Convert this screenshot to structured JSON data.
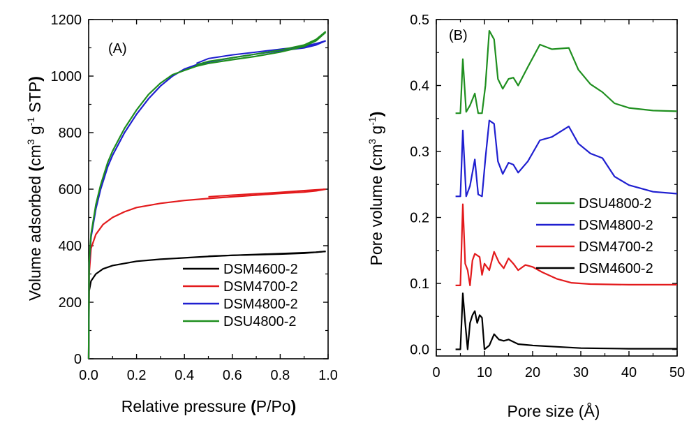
{
  "chart_data": [
    {
      "type": "line",
      "panel_label": "(A)",
      "xlabel_parts": [
        "Relative pressure ",
        "(",
        "P/Po",
        ")"
      ],
      "ylabel_parts": [
        "Volume adsorbed ",
        "(",
        "cm",
        "3",
        " g",
        "-1",
        " STP",
        ")"
      ],
      "xlim": [
        0.0,
        1.0
      ],
      "ylim": [
        0,
        1200
      ],
      "xticks": [
        0.0,
        0.2,
        0.4,
        0.6,
        0.8,
        1.0
      ],
      "xtick_labels": [
        "0.0",
        "0.2",
        "0.4",
        "0.6",
        "0.8",
        "1.0"
      ],
      "yticks": [
        0,
        200,
        400,
        600,
        800,
        1000,
        1200
      ],
      "ytick_labels": [
        "0",
        "200",
        "400",
        "600",
        "800",
        "1000",
        "1200"
      ],
      "legend_position": "bottom-right",
      "legend_order": [
        "DSM4600-2",
        "DSM4700-2",
        "DSM4800-2",
        "DSU4800-2"
      ],
      "series": [
        {
          "name": "DSM4600-2",
          "color": "#000000",
          "x": [
            0.0,
            0.002,
            0.01,
            0.03,
            0.06,
            0.1,
            0.2,
            0.3,
            0.4,
            0.5,
            0.6,
            0.7,
            0.8,
            0.9,
            0.95,
            0.99
          ],
          "y": [
            0,
            240,
            275,
            300,
            318,
            330,
            345,
            352,
            357,
            362,
            366,
            369,
            372,
            375,
            377,
            380
          ],
          "hysteresis": [
            [
              0.99,
              380
            ],
            [
              0.9,
              373
            ],
            [
              0.8,
              370
            ],
            [
              0.7,
              368
            ],
            [
              0.6,
              366
            ],
            [
              0.5,
              363
            ]
          ]
        },
        {
          "name": "DSM4700-2",
          "color": "#e31a1c",
          "x": [
            0.0,
            0.002,
            0.01,
            0.03,
            0.06,
            0.1,
            0.15,
            0.2,
            0.3,
            0.4,
            0.5,
            0.6,
            0.7,
            0.8,
            0.9,
            0.95,
            0.99
          ],
          "y": [
            0,
            300,
            390,
            440,
            475,
            500,
            520,
            535,
            550,
            560,
            567,
            573,
            579,
            585,
            590,
            594,
            600
          ],
          "hysteresis": [
            [
              0.99,
              600
            ],
            [
              0.9,
              595
            ],
            [
              0.8,
              589
            ],
            [
              0.7,
              584
            ],
            [
              0.6,
              579
            ],
            [
              0.5,
              573
            ]
          ]
        },
        {
          "name": "DSM4800-2",
          "color": "#1f1fd0",
          "x": [
            0.0,
            0.002,
            0.01,
            0.03,
            0.05,
            0.08,
            0.1,
            0.15,
            0.2,
            0.25,
            0.3,
            0.35,
            0.4,
            0.45,
            0.5,
            0.6,
            0.7,
            0.8,
            0.9,
            0.95,
            0.99
          ],
          "y": [
            0,
            330,
            430,
            530,
            600,
            680,
            720,
            800,
            865,
            920,
            965,
            1000,
            1025,
            1040,
            1050,
            1065,
            1078,
            1090,
            1100,
            1110,
            1125
          ],
          "hysteresis": [
            [
              0.99,
              1125
            ],
            [
              0.95,
              1115
            ],
            [
              0.9,
              1105
            ],
            [
              0.8,
              1095
            ],
            [
              0.7,
              1085
            ],
            [
              0.6,
              1075
            ],
            [
              0.5,
              1062
            ],
            [
              0.45,
              1045
            ]
          ]
        },
        {
          "name": "DSU4800-2",
          "color": "#1f8f1f",
          "x": [
            0.0,
            0.002,
            0.01,
            0.03,
            0.05,
            0.08,
            0.1,
            0.15,
            0.2,
            0.25,
            0.3,
            0.35,
            0.4,
            0.45,
            0.5,
            0.6,
            0.7,
            0.8,
            0.9,
            0.95,
            0.99
          ],
          "y": [
            0,
            340,
            440,
            545,
            615,
            695,
            735,
            815,
            880,
            935,
            975,
            1005,
            1020,
            1035,
            1045,
            1058,
            1070,
            1085,
            1105,
            1125,
            1155
          ],
          "hysteresis": [
            [
              0.99,
              1158
            ],
            [
              0.95,
              1130
            ],
            [
              0.9,
              1110
            ],
            [
              0.8,
              1092
            ],
            [
              0.7,
              1078
            ],
            [
              0.6,
              1065
            ],
            [
              0.5,
              1052
            ],
            [
              0.45,
              1040
            ]
          ]
        }
      ]
    },
    {
      "type": "line",
      "panel_label": "(B)",
      "xlabel_parts": [
        "Pore size (Å)"
      ],
      "ylabel_parts": [
        "Pore volume ",
        "(",
        "cm",
        "3",
        " g",
        "-1",
        ")"
      ],
      "xlim": [
        0,
        50
      ],
      "ylim": [
        -0.01,
        0.5
      ],
      "xticks": [
        0,
        10,
        20,
        30,
        40,
        50
      ],
      "xtick_labels": [
        "0",
        "10",
        "20",
        "30",
        "40",
        "50"
      ],
      "yticks": [
        0.0,
        0.1,
        0.2,
        0.3,
        0.4,
        0.5
      ],
      "ytick_labels": [
        "0.0",
        "0.1",
        "0.2",
        "0.3",
        "0.4",
        "0.5"
      ],
      "legend_position": "right-middle",
      "legend_order": [
        "DSU4800-2",
        "DSM4800-2",
        "DSM4700-2",
        "DSM4600-2"
      ],
      "series": [
        {
          "name": "DSU4800-2",
          "color": "#1f8f1f",
          "x": [
            4.0,
            5.0,
            5.5,
            6.2,
            7.0,
            8.0,
            8.7,
            9.5,
            10.2,
            11.0,
            12.0,
            12.8,
            13.8,
            15.0,
            16.0,
            17.0,
            19.0,
            21.5,
            24.0,
            27.5,
            29.5,
            32.0,
            34.5,
            37.0,
            40.0,
            45.0,
            50.0
          ],
          "y": [
            0.358,
            0.358,
            0.44,
            0.36,
            0.37,
            0.388,
            0.358,
            0.358,
            0.4,
            0.483,
            0.47,
            0.41,
            0.395,
            0.41,
            0.412,
            0.4,
            0.428,
            0.462,
            0.455,
            0.457,
            0.424,
            0.402,
            0.39,
            0.373,
            0.366,
            0.362,
            0.361
          ]
        },
        {
          "name": "DSM4800-2",
          "color": "#1f1fd0",
          "x": [
            4.0,
            5.0,
            5.5,
            6.2,
            7.0,
            8.0,
            8.7,
            9.5,
            10.2,
            11.0,
            12.0,
            12.8,
            13.8,
            15.0,
            16.0,
            17.0,
            19.0,
            21.5,
            24.0,
            27.5,
            29.5,
            32.0,
            34.5,
            37.0,
            40.0,
            45.0,
            50.0
          ],
          "y": [
            0.232,
            0.232,
            0.332,
            0.232,
            0.248,
            0.288,
            0.235,
            0.232,
            0.29,
            0.347,
            0.342,
            0.285,
            0.266,
            0.283,
            0.28,
            0.268,
            0.285,
            0.317,
            0.322,
            0.338,
            0.312,
            0.297,
            0.29,
            0.262,
            0.249,
            0.239,
            0.236
          ]
        },
        {
          "name": "DSM4700-2",
          "color": "#e31a1c",
          "x": [
            4.0,
            5.0,
            5.5,
            6.0,
            6.5,
            7.0,
            7.5,
            8.0,
            9.0,
            9.5,
            10.0,
            11.0,
            12.0,
            13.0,
            14.0,
            15.0,
            16.0,
            17.0,
            18.5,
            20.0,
            22.0,
            25.0,
            28.0,
            32.0,
            40.0,
            50.0
          ],
          "y": [
            0.097,
            0.097,
            0.22,
            0.13,
            0.12,
            0.097,
            0.135,
            0.145,
            0.14,
            0.113,
            0.13,
            0.12,
            0.148,
            0.132,
            0.123,
            0.138,
            0.13,
            0.12,
            0.128,
            0.125,
            0.117,
            0.107,
            0.101,
            0.099,
            0.098,
            0.098
          ]
        },
        {
          "name": "DSM4600-2",
          "color": "#000000",
          "x": [
            4.0,
            5.0,
            5.5,
            6.0,
            6.5,
            7.0,
            7.5,
            8.0,
            8.5,
            9.0,
            9.5,
            10.0,
            11.0,
            12.0,
            13.0,
            14.0,
            15.0,
            17.0,
            20.0,
            25.0,
            30.0,
            40.0,
            50.0
          ],
          "y": [
            0.0,
            0.0,
            0.085,
            0.04,
            0.0,
            0.04,
            0.052,
            0.058,
            0.04,
            0.052,
            0.048,
            0.0,
            0.006,
            0.023,
            0.015,
            0.013,
            0.015,
            0.008,
            0.006,
            0.004,
            0.002,
            0.001,
            0.001
          ]
        }
      ]
    }
  ]
}
